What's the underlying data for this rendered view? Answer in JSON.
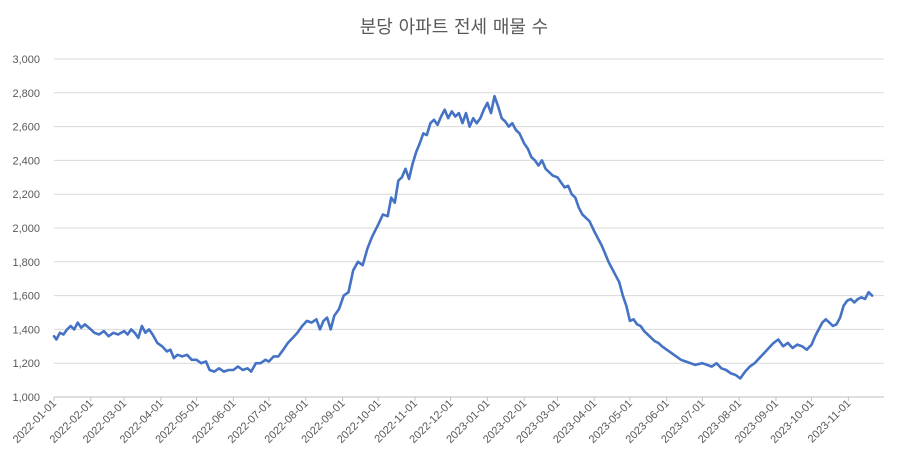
{
  "chart_data": {
    "type": "line",
    "title": "분당 아파트 전세 매물 수",
    "xlabel": "",
    "ylabel": "",
    "ylim": [
      1000,
      3000
    ],
    "yticks": [
      "1,000",
      "1,200",
      "1,400",
      "1,600",
      "1,800",
      "2,000",
      "2,200",
      "2,400",
      "2,600",
      "2,800",
      "3,000"
    ],
    "xlim": [
      "2022-01-01",
      "2023-12-01"
    ],
    "xticks": [
      "2022-01-01",
      "2022-02-01",
      "2022-03-01",
      "2022-04-01",
      "2022-05-01",
      "2022-06-01",
      "2022-07-01",
      "2022-08-01",
      "2022-09-01",
      "2022-10-01",
      "2022-11-01",
      "2022-12-01",
      "2023-01-01",
      "2023-02-01",
      "2023-03-01",
      "2023-04-01",
      "2023-05-01",
      "2023-06-01",
      "2023-07-01",
      "2023-08-01",
      "2023-09-01",
      "2023-10-01",
      "2023-11-01"
    ],
    "grid": true,
    "legend": "none",
    "series": [
      {
        "color": "#4472c4",
        "points": [
          [
            "2022-01-01",
            1360
          ],
          [
            "2022-01-03",
            1340
          ],
          [
            "2022-01-06",
            1380
          ],
          [
            "2022-01-09",
            1370
          ],
          [
            "2022-01-12",
            1400
          ],
          [
            "2022-01-15",
            1420
          ],
          [
            "2022-01-18",
            1400
          ],
          [
            "2022-01-21",
            1440
          ],
          [
            "2022-01-24",
            1410
          ],
          [
            "2022-01-27",
            1430
          ],
          [
            "2022-02-01",
            1400
          ],
          [
            "2022-02-04",
            1380
          ],
          [
            "2022-02-08",
            1370
          ],
          [
            "2022-02-12",
            1390
          ],
          [
            "2022-02-16",
            1360
          ],
          [
            "2022-02-20",
            1380
          ],
          [
            "2022-02-24",
            1370
          ],
          [
            "2022-03-01",
            1390
          ],
          [
            "2022-03-04",
            1370
          ],
          [
            "2022-03-07",
            1400
          ],
          [
            "2022-03-10",
            1380
          ],
          [
            "2022-03-13",
            1350
          ],
          [
            "2022-03-16",
            1420
          ],
          [
            "2022-03-19",
            1380
          ],
          [
            "2022-03-22",
            1400
          ],
          [
            "2022-03-25",
            1370
          ],
          [
            "2022-03-29",
            1320
          ],
          [
            "2022-04-02",
            1300
          ],
          [
            "2022-04-06",
            1270
          ],
          [
            "2022-04-09",
            1280
          ],
          [
            "2022-04-12",
            1230
          ],
          [
            "2022-04-15",
            1250
          ],
          [
            "2022-04-19",
            1240
          ],
          [
            "2022-04-23",
            1250
          ],
          [
            "2022-04-27",
            1220
          ],
          [
            "2022-05-01",
            1220
          ],
          [
            "2022-05-05",
            1200
          ],
          [
            "2022-05-09",
            1210
          ],
          [
            "2022-05-12",
            1160
          ],
          [
            "2022-05-16",
            1150
          ],
          [
            "2022-05-20",
            1170
          ],
          [
            "2022-05-24",
            1150
          ],
          [
            "2022-05-28",
            1160
          ],
          [
            "2022-06-01",
            1160
          ],
          [
            "2022-06-05",
            1180
          ],
          [
            "2022-06-09",
            1160
          ],
          [
            "2022-06-13",
            1170
          ],
          [
            "2022-06-16",
            1150
          ],
          [
            "2022-06-20",
            1200
          ],
          [
            "2022-06-24",
            1200
          ],
          [
            "2022-06-28",
            1220
          ],
          [
            "2022-07-01",
            1210
          ],
          [
            "2022-07-05",
            1240
          ],
          [
            "2022-07-09",
            1240
          ],
          [
            "2022-07-13",
            1280
          ],
          [
            "2022-07-17",
            1320
          ],
          [
            "2022-07-21",
            1350
          ],
          [
            "2022-07-25",
            1380
          ],
          [
            "2022-07-29",
            1420
          ],
          [
            "2022-08-02",
            1450
          ],
          [
            "2022-08-06",
            1440
          ],
          [
            "2022-08-10",
            1460
          ],
          [
            "2022-08-13",
            1400
          ],
          [
            "2022-08-16",
            1450
          ],
          [
            "2022-08-19",
            1470
          ],
          [
            "2022-08-22",
            1400
          ],
          [
            "2022-08-25",
            1480
          ],
          [
            "2022-08-29",
            1520
          ],
          [
            "2022-09-02",
            1600
          ],
          [
            "2022-09-06",
            1620
          ],
          [
            "2022-09-10",
            1750
          ],
          [
            "2022-09-14",
            1800
          ],
          [
            "2022-09-18",
            1780
          ],
          [
            "2022-09-22",
            1880
          ],
          [
            "2022-09-26",
            1950
          ],
          [
            "2022-10-01",
            2020
          ],
          [
            "2022-10-05",
            2080
          ],
          [
            "2022-10-09",
            2070
          ],
          [
            "2022-10-12",
            2180
          ],
          [
            "2022-10-15",
            2150
          ],
          [
            "2022-10-18",
            2280
          ],
          [
            "2022-10-21",
            2300
          ],
          [
            "2022-10-24",
            2350
          ],
          [
            "2022-10-27",
            2290
          ],
          [
            "2022-10-30",
            2380
          ],
          [
            "2022-11-02",
            2450
          ],
          [
            "2022-11-05",
            2500
          ],
          [
            "2022-11-08",
            2560
          ],
          [
            "2022-11-11",
            2550
          ],
          [
            "2022-11-14",
            2620
          ],
          [
            "2022-11-17",
            2640
          ],
          [
            "2022-11-20",
            2610
          ],
          [
            "2022-11-23",
            2660
          ],
          [
            "2022-11-26",
            2700
          ],
          [
            "2022-11-29",
            2650
          ],
          [
            "2022-12-02",
            2690
          ],
          [
            "2022-12-05",
            2660
          ],
          [
            "2022-12-08",
            2680
          ],
          [
            "2022-12-11",
            2620
          ],
          [
            "2022-12-14",
            2680
          ],
          [
            "2022-12-17",
            2600
          ],
          [
            "2022-12-20",
            2650
          ],
          [
            "2022-12-23",
            2620
          ],
          [
            "2022-12-26",
            2650
          ],
          [
            "2022-12-29",
            2700
          ],
          [
            "2023-01-01",
            2740
          ],
          [
            "2023-01-04",
            2680
          ],
          [
            "2023-01-07",
            2780
          ],
          [
            "2023-01-10",
            2720
          ],
          [
            "2023-01-13",
            2650
          ],
          [
            "2023-01-16",
            2630
          ],
          [
            "2023-01-19",
            2600
          ],
          [
            "2023-01-22",
            2620
          ],
          [
            "2023-01-25",
            2580
          ],
          [
            "2023-01-28",
            2560
          ],
          [
            "2023-02-01",
            2500
          ],
          [
            "2023-02-04",
            2470
          ],
          [
            "2023-02-07",
            2420
          ],
          [
            "2023-02-10",
            2400
          ],
          [
            "2023-02-13",
            2370
          ],
          [
            "2023-02-16",
            2400
          ],
          [
            "2023-02-19",
            2350
          ],
          [
            "2023-02-22",
            2330
          ],
          [
            "2023-02-25",
            2310
          ],
          [
            "2023-03-01",
            2300
          ],
          [
            "2023-03-04",
            2270
          ],
          [
            "2023-03-07",
            2240
          ],
          [
            "2023-03-10",
            2250
          ],
          [
            "2023-03-13",
            2200
          ],
          [
            "2023-03-16",
            2180
          ],
          [
            "2023-03-19",
            2120
          ],
          [
            "2023-03-22",
            2080
          ],
          [
            "2023-03-25",
            2060
          ],
          [
            "2023-03-28",
            2040
          ],
          [
            "2023-04-01",
            1980
          ],
          [
            "2023-04-04",
            1940
          ],
          [
            "2023-04-07",
            1900
          ],
          [
            "2023-04-10",
            1850
          ],
          [
            "2023-04-13",
            1800
          ],
          [
            "2023-04-16",
            1760
          ],
          [
            "2023-04-19",
            1720
          ],
          [
            "2023-04-22",
            1680
          ],
          [
            "2023-04-25",
            1600
          ],
          [
            "2023-04-28",
            1540
          ],
          [
            "2023-05-01",
            1450
          ],
          [
            "2023-05-04",
            1460
          ],
          [
            "2023-05-07",
            1430
          ],
          [
            "2023-05-10",
            1420
          ],
          [
            "2023-05-13",
            1390
          ],
          [
            "2023-05-16",
            1370
          ],
          [
            "2023-05-19",
            1350
          ],
          [
            "2023-05-22",
            1330
          ],
          [
            "2023-05-25",
            1320
          ],
          [
            "2023-05-28",
            1300
          ],
          [
            "2023-06-01",
            1280
          ],
          [
            "2023-06-05",
            1260
          ],
          [
            "2023-06-09",
            1240
          ],
          [
            "2023-06-13",
            1220
          ],
          [
            "2023-06-17",
            1210
          ],
          [
            "2023-06-21",
            1200
          ],
          [
            "2023-06-25",
            1190
          ],
          [
            "2023-07-01",
            1200
          ],
          [
            "2023-07-05",
            1190
          ],
          [
            "2023-07-09",
            1180
          ],
          [
            "2023-07-13",
            1200
          ],
          [
            "2023-07-17",
            1170
          ],
          [
            "2023-07-21",
            1160
          ],
          [
            "2023-07-25",
            1140
          ],
          [
            "2023-07-29",
            1130
          ],
          [
            "2023-08-02",
            1110
          ],
          [
            "2023-08-06",
            1150
          ],
          [
            "2023-08-10",
            1180
          ],
          [
            "2023-08-14",
            1200
          ],
          [
            "2023-08-18",
            1230
          ],
          [
            "2023-08-22",
            1260
          ],
          [
            "2023-08-26",
            1290
          ],
          [
            "2023-08-30",
            1320
          ],
          [
            "2023-09-03",
            1340
          ],
          [
            "2023-09-07",
            1300
          ],
          [
            "2023-09-11",
            1320
          ],
          [
            "2023-09-15",
            1290
          ],
          [
            "2023-09-19",
            1310
          ],
          [
            "2023-09-23",
            1300
          ],
          [
            "2023-09-27",
            1280
          ],
          [
            "2023-10-01",
            1310
          ],
          [
            "2023-10-04",
            1360
          ],
          [
            "2023-10-07",
            1400
          ],
          [
            "2023-10-10",
            1440
          ],
          [
            "2023-10-13",
            1460
          ],
          [
            "2023-10-16",
            1440
          ],
          [
            "2023-10-19",
            1420
          ],
          [
            "2023-10-22",
            1430
          ],
          [
            "2023-10-25",
            1470
          ],
          [
            "2023-10-28",
            1540
          ],
          [
            "2023-10-31",
            1570
          ],
          [
            "2023-11-03",
            1580
          ],
          [
            "2023-11-06",
            1560
          ],
          [
            "2023-11-09",
            1580
          ],
          [
            "2023-11-12",
            1590
          ],
          [
            "2023-11-15",
            1580
          ],
          [
            "2023-11-18",
            1620
          ],
          [
            "2023-11-21",
            1600
          ]
        ]
      }
    ]
  }
}
